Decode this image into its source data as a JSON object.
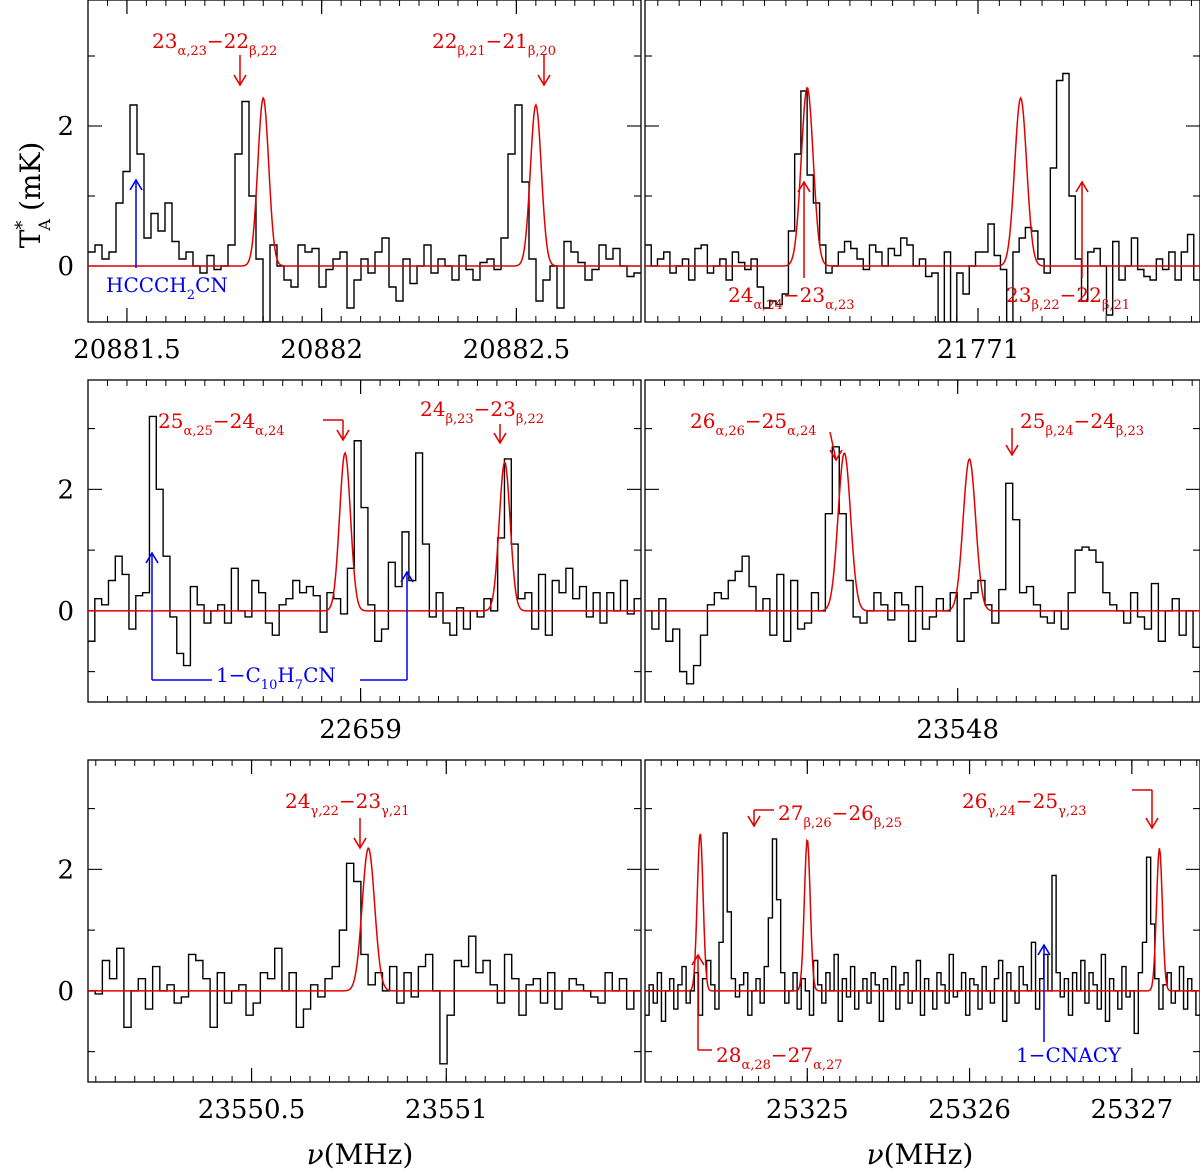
{
  "figure": {
    "ylabel_main": "T",
    "ylabel_sup": "*",
    "ylabel_sub": "A",
    "ylabel_unit": "(mK)",
    "xlabel_nu": "ν",
    "xlabel_unit": "(MHz)"
  },
  "colors": {
    "observed": "#000000",
    "model": "#e00000",
    "other_species": "#0000ee"
  },
  "chart_data": [
    {
      "type": "line",
      "panel": "top-left",
      "xlim": [
        20881.4,
        20882.82
      ],
      "ylim": [
        -0.8,
        3.8
      ],
      "xticks": [
        20881.5,
        20882,
        20882.5
      ],
      "xtick_labels": [
        "20881.5",
        "20882",
        "20882.5"
      ],
      "yticks": [
        0,
        2
      ],
      "ytick_labels": [
        "0",
        "2"
      ],
      "step_resolution": 0.0183,
      "observed": [
        0.2,
        0.3,
        0.1,
        0.2,
        0.9,
        1.35,
        2.3,
        1.6,
        0.4,
        0.75,
        0.5,
        0.9,
        0.35,
        0.1,
        0.2,
        0.0,
        -0.1,
        0.15,
        -0.05,
        0.0,
        0.3,
        1.6,
        2.35,
        1.0,
        0.1,
        -0.8,
        0.3,
        0.0,
        -0.2,
        -0.3,
        0.3,
        0.2,
        0.25,
        -0.3,
        -0.05,
        0.1,
        0.2,
        -0.6,
        -0.2,
        0.1,
        -0.1,
        0.2,
        0.4,
        -0.3,
        -0.5,
        0.1,
        -0.25,
        0.0,
        0.3,
        -0.1,
        0.1,
        0.0,
        -0.2,
        0.15,
        -0.05,
        -0.2,
        0.05,
        0.1,
        -0.05,
        0.4,
        1.6,
        2.3,
        1.2,
        0.1,
        -0.5,
        -0.2,
        0.0,
        -0.6,
        0.35,
        0.2,
        0.05,
        -0.2,
        -0.05,
        0.3,
        0.1,
        0.25,
        0.0,
        -0.15,
        -0.1
      ],
      "model_lines": [
        {
          "center": 20881.85,
          "amp": 2.4
        },
        {
          "center": 20882.55,
          "amp": 2.3
        }
      ],
      "model_sigma": 0.014,
      "annotations": [
        {
          "text": "23α,23−22β,22",
          "main": "23",
          "sub": "α,23",
          "sep": "−",
          "main2": "22",
          "sub2": "β,22",
          "color": "red",
          "direction": "down"
        },
        {
          "text": "22β,21−21β,20",
          "main": "22",
          "sub": "β,21",
          "sep": "−",
          "main2": "21",
          "sub2": "β,20",
          "color": "red",
          "direction": "down"
        },
        {
          "text": "HCCCH2CN",
          "main": "HCCCH",
          "sub": "2",
          "sep": "",
          "main2": "CN",
          "sub2": "",
          "color": "blue",
          "direction": "up"
        }
      ]
    },
    {
      "type": "line",
      "panel": "top-right",
      "xlim": [
        21770.22,
        21771.52
      ],
      "ylim": [
        -0.8,
        3.8
      ],
      "xticks": [
        21771
      ],
      "xtick_labels": [
        "21771"
      ],
      "yticks": [
        0,
        2
      ],
      "ytick_labels": [
        "0",
        "2"
      ],
      "step_resolution": 0.0183,
      "observed": [
        0.3,
        0.0,
        0.1,
        0.2,
        -0.1,
        0.0,
        0.1,
        -0.2,
        0.25,
        0.3,
        -0.1,
        0.0,
        0.1,
        -0.2,
        0.2,
        0.05,
        -0.05,
        0.1,
        -0.3,
        -0.6,
        -0.5,
        -0.55,
        -0.4,
        0.5,
        1.6,
        2.5,
        1.3,
        0.9,
        0.3,
        -0.1,
        0.0,
        0.2,
        0.35,
        0.25,
        0.1,
        -0.05,
        0.3,
        0.2,
        0.0,
        0.25,
        0.15,
        0.4,
        0.3,
        0.0,
        0.1,
        -0.15,
        -0.1,
        -0.9,
        0.2,
        -0.8,
        -0.1,
        -0.4,
        0.0,
        0.2,
        0.2,
        0.6,
        0.15,
        -0.05,
        -0.8,
        0.2,
        0.4,
        0.55,
        0.5,
        0.1,
        -0.1,
        1.4,
        2.65,
        2.75,
        1.0,
        0.1,
        -0.5,
        0.2,
        0.25,
        0.0,
        -0.7,
        0.35,
        -0.2,
        0.0,
        0.4,
        -0.05,
        -0.15,
        -0.2,
        0.1,
        -0.05,
        0.2,
        -0.2,
        0.2,
        0.45,
        -0.2
      ],
      "model_lines": [
        {
          "center": 21770.6,
          "amp": 2.55
        },
        {
          "center": 21771.1,
          "amp": 2.4
        }
      ],
      "model_sigma": 0.014,
      "annotations": [
        {
          "text": "24α,24−23α,23",
          "main": "24",
          "sub": "α,24",
          "sep": "−",
          "main2": "23",
          "sub2": "α,23",
          "color": "red",
          "direction": "up"
        },
        {
          "text": "23β,22−22β,21",
          "main": "23",
          "sub": "β,22",
          "sep": "−",
          "main2": "22",
          "sub2": "β,21",
          "color": "red",
          "direction": "up"
        }
      ]
    },
    {
      "type": "line",
      "panel": "middle-left",
      "xlim": [
        22658.3,
        22659.72
      ],
      "ylim": [
        -1.5,
        3.8
      ],
      "xticks": [
        22659
      ],
      "xtick_labels": [
        "22659"
      ],
      "yticks": [
        0,
        2
      ],
      "ytick_labels": [
        "0",
        "2"
      ],
      "step_resolution": 0.0183,
      "observed": [
        -0.5,
        0.2,
        0.1,
        0.5,
        0.9,
        0.6,
        -0.3,
        0.25,
        0.3,
        3.2,
        2.0,
        0.9,
        -0.1,
        -0.7,
        -0.9,
        0.4,
        0.1,
        -0.2,
        0.0,
        0.1,
        -0.2,
        0.7,
        0.0,
        -0.1,
        0.5,
        0.3,
        -0.2,
        -0.4,
        0.1,
        0.2,
        0.5,
        0.3,
        0.4,
        0.25,
        -0.35,
        0.3,
        0.2,
        -0.05,
        0.7,
        2.8,
        1.7,
        0.1,
        -0.5,
        -0.3,
        0.8,
        0.4,
        1.3,
        0.5,
        2.6,
        1.1,
        -0.1,
        0.3,
        -0.2,
        -0.4,
        0.05,
        -0.3,
        0.0,
        -0.1,
        0.2,
        0.0,
        1.2,
        2.5,
        1.1,
        0.2,
        0.3,
        -0.3,
        0.6,
        -0.4,
        0.5,
        0.3,
        0.7,
        0.2,
        0.4,
        -0.1,
        0.3,
        -0.2,
        0.3,
        0.0,
        0.5,
        -0.05,
        0.2
      ],
      "model_lines": [
        {
          "center": 22658.96,
          "amp": 2.6
        },
        {
          "center": 22659.37,
          "amp": 2.45
        }
      ],
      "model_sigma": 0.014,
      "annotations": [
        {
          "text": "25α,25−24α,24",
          "main": "25",
          "sub": "α,25",
          "sep": "−",
          "main2": "24",
          "sub2": "α,24",
          "color": "red",
          "direction": "down"
        },
        {
          "text": "24β,23−23β,22",
          "main": "24",
          "sub": "β,23",
          "sep": "−",
          "main2": "23",
          "sub2": "β,22",
          "color": "red",
          "direction": "down"
        },
        {
          "text": "1−C10H7CN",
          "main": "1−C",
          "sub": "10",
          "sep": "",
          "main2": "H",
          "sub2": "7",
          "tail": "CN",
          "color": "blue",
          "direction": "up"
        }
      ]
    },
    {
      "type": "line",
      "panel": "middle-right",
      "xlim": [
        23547.2,
        23548.62
      ],
      "ylim": [
        -1.5,
        3.8
      ],
      "xticks": [
        23548
      ],
      "xtick_labels": [
        "23548"
      ],
      "yticks": [
        0,
        2
      ],
      "ytick_labels": [
        "0",
        "2"
      ],
      "step_resolution": 0.0183,
      "observed": [
        0.0,
        -0.3,
        0.2,
        -0.5,
        -0.3,
        -1.0,
        -1.2,
        -0.9,
        -0.4,
        0.1,
        0.3,
        0.2,
        0.5,
        0.65,
        0.9,
        0.4,
        0.0,
        0.2,
        -0.4,
        0.6,
        -0.5,
        0.5,
        -0.3,
        -0.2,
        0.3,
        0.0,
        1.6,
        2.7,
        1.6,
        0.5,
        -0.1,
        -0.2,
        0.0,
        0.3,
        0.1,
        -0.15,
        0.3,
        0.1,
        -0.5,
        0.4,
        -0.3,
        -0.1,
        0.2,
        0.0,
        0.3,
        -0.5,
        0.2,
        0.3,
        0.5,
        0.1,
        -0.2,
        0.35,
        2.1,
        1.5,
        0.3,
        0.4,
        0.1,
        -0.1,
        -0.2,
        0.0,
        -0.3,
        0.3,
        1.0,
        1.05,
        1.0,
        0.8,
        0.3,
        0.1,
        0.0,
        -0.2,
        0.3,
        -0.1,
        -0.3,
        0.45,
        -0.5,
        0.0,
        0.2,
        -0.4,
        0.0,
        -0.6
      ],
      "model_lines": [
        {
          "center": 23547.71,
          "amp": 2.6
        },
        {
          "center": 23548.03,
          "amp": 2.5
        }
      ],
      "model_sigma": 0.016,
      "annotations": [
        {
          "text": "26α,26−25α,24",
          "main": "26",
          "sub": "α,26",
          "sep": "−",
          "main2": "25",
          "sub2": "α,24",
          "color": "red",
          "direction": "down"
        },
        {
          "text": "25β,24−24β,23",
          "main": "25",
          "sub": "β,24",
          "sep": "−",
          "main2": "24",
          "sub2": "β,23",
          "color": "red",
          "direction": "down"
        }
      ]
    },
    {
      "type": "line",
      "panel": "bottom-left",
      "xlim": [
        23550.08,
        23551.5
      ],
      "ylim": [
        -1.5,
        3.8
      ],
      "xticks": [
        23550.5,
        23551
      ],
      "xtick_labels": [
        "23550.5",
        "23551"
      ],
      "yticks": [
        0,
        2
      ],
      "ytick_labels": [
        "0",
        "2"
      ],
      "step_resolution": 0.0183,
      "observed": [
        0.0,
        -0.05,
        0.5,
        0.2,
        0.7,
        -0.6,
        0.0,
        0.2,
        -0.3,
        0.4,
        0.0,
        0.1,
        -0.2,
        -0.1,
        0.6,
        0.5,
        0.2,
        -0.6,
        0.3,
        -0.2,
        0.0,
        0.1,
        -0.4,
        -0.2,
        0.3,
        0.2,
        0.7,
        0.0,
        0.3,
        -0.6,
        -0.3,
        0.1,
        -0.1,
        0.2,
        0.4,
        1.0,
        2.1,
        1.8,
        0.6,
        0.1,
        0.3,
        0.0,
        0.4,
        -0.2,
        0.3,
        -0.1,
        0.4,
        0.6,
        0.0,
        -1.2,
        -0.4,
        0.5,
        0.4,
        0.9,
        0.3,
        0.5,
        0.1,
        -0.2,
        0.6,
        0.2,
        -0.4,
        0.1,
        0.2,
        -0.2,
        0.3,
        -0.3,
        0.0,
        0.2,
        0.1,
        0.0,
        -0.1,
        -0.2,
        0.3,
        0.0,
        0.2,
        -0.3,
        0.0
      ],
      "model_lines": [
        {
          "center": 23550.8,
          "amp": 2.35
        }
      ],
      "model_sigma": 0.016,
      "xlabel": "ν(MHz)",
      "annotations": [
        {
          "text": "24γ,22−23γ,21",
          "main": "24",
          "sub": "γ,22",
          "sep": "−",
          "main2": "23",
          "sub2": "γ,21",
          "color": "red",
          "direction": "down"
        }
      ]
    },
    {
      "type": "line",
      "panel": "bottom-right",
      "xlim": [
        25324.0,
        25327.42
      ],
      "ylim": [
        -1.5,
        3.8
      ],
      "xticks": [
        25325,
        25326,
        25327
      ],
      "xtick_labels": [
        "25325",
        "25326",
        "25327"
      ],
      "yticks": [
        0,
        2
      ],
      "ytick_labels": [
        "0",
        "2"
      ],
      "step_resolution": 0.0183,
      "observed": [
        -0.4,
        0.1,
        -0.2,
        0.3,
        -0.5,
        0.0,
        0.2,
        -0.3,
        0.1,
        0.4,
        -0.2,
        0.0,
        0.3,
        -0.4,
        0.2,
        0.5,
        0.1,
        -0.3,
        0.8,
        2.6,
        1.3,
        0.2,
        -0.1,
        0.1,
        0.3,
        -0.4,
        0.0,
        0.2,
        -0.2,
        0.4,
        1.2,
        2.5,
        1.5,
        0.3,
        -0.2,
        0.0,
        0.3,
        -0.3,
        0.2,
        0.0,
        -0.4,
        0.5,
        0.1,
        -0.2,
        0.3,
        0.0,
        0.6,
        -0.5,
        0.2,
        -0.1,
        0.4,
        -0.3,
        0.0,
        0.2,
        -0.2,
        0.3,
        0.1,
        -0.5,
        0.2,
        0.0,
        0.4,
        -0.3,
        0.1,
        0.3,
        -0.2,
        0.0,
        0.5,
        -0.4,
        0.2,
        0.0,
        -0.3,
        0.3,
        0.1,
        -0.2,
        0.6,
        -0.1,
        0.0,
        0.3,
        -0.4,
        0.2,
        0.1,
        -0.3,
        0.4,
        0.0,
        -0.2,
        0.2,
        0.5,
        -0.5,
        0.3,
        0.0,
        -0.2,
        0.4,
        0.1,
        0.0,
        0.8,
        -0.3,
        0.2,
        0.6,
        0.0,
        1.9,
        0.3,
        -0.1,
        0.2,
        -0.4,
        0.3,
        0.0,
        0.5,
        -0.2,
        0.3,
        0.1,
        -0.3,
        0.6,
        -0.5,
        0.2,
        0.0,
        -0.3,
        0.4,
        -0.1,
        0.0,
        -0.7,
        0.3,
        0.8,
        2.2,
        1.1,
        0.2,
        -0.3,
        0.1,
        0.3,
        -0.2,
        0.0,
        0.4,
        -0.3,
        0.2,
        0.0,
        -0.4
      ],
      "model_lines": [
        {
          "center": 25324.34,
          "amp": 2.6
        },
        {
          "center": 25325.0,
          "amp": 2.5
        },
        {
          "center": 25327.17,
          "amp": 2.35
        }
      ],
      "model_sigma": 0.018,
      "xlabel": "ν(MHz)",
      "annotations": [
        {
          "text": "27β,26−26β,25",
          "main": "27",
          "sub": "β,26",
          "sep": "−",
          "main2": "26",
          "sub2": "β,25",
          "color": "red",
          "direction": "down"
        },
        {
          "text": "26γ,24−25γ,23",
          "main": "26",
          "sub": "γ,24",
          "sep": "−",
          "main2": "25",
          "sub2": "γ,23",
          "color": "red",
          "direction": "down"
        },
        {
          "text": "28α,28−27α,27",
          "main": "28",
          "sub": "α,28",
          "sep": "−",
          "main2": "27",
          "sub2": "α,27",
          "color": "red",
          "direction": "up"
        },
        {
          "text": "1−CNACY",
          "main": "1−CNACY",
          "sub": "",
          "sep": "",
          "main2": "",
          "sub2": "",
          "color": "blue",
          "direction": "up"
        }
      ]
    }
  ]
}
